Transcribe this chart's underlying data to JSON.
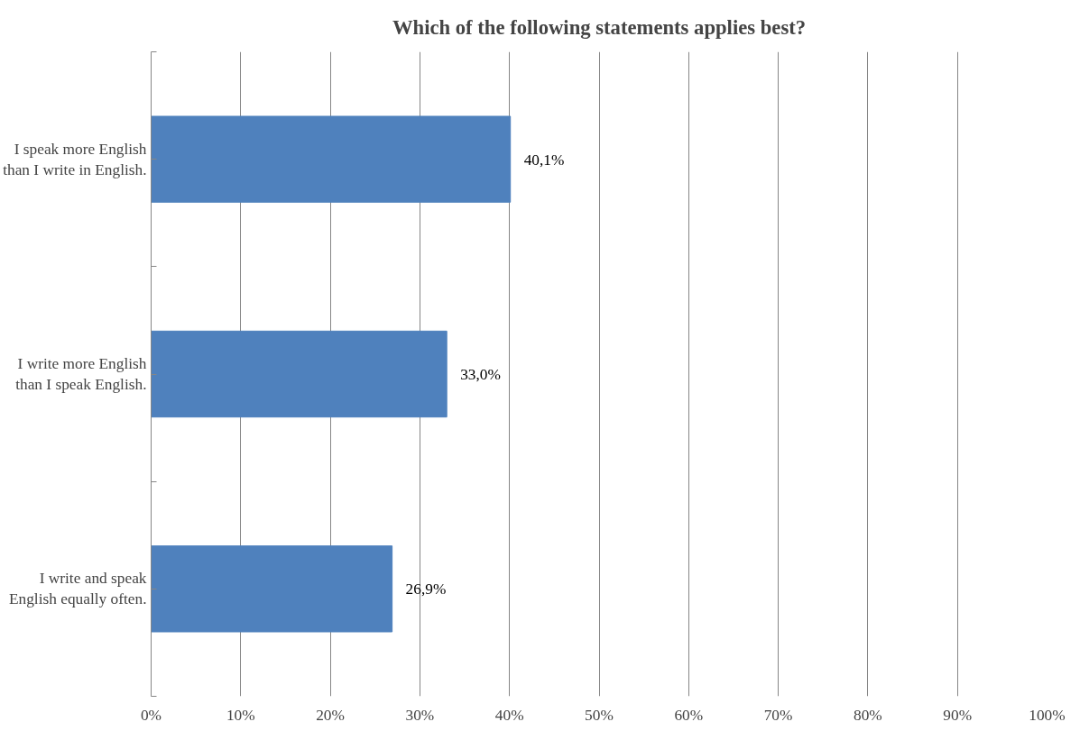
{
  "chart_data": {
    "type": "bar",
    "orientation": "horizontal",
    "title": "Which of the following statements applies best?",
    "categories": [
      "I speak more English than I write in English.",
      "I write more English than I speak English.",
      "I write and speak English equally often."
    ],
    "values": [
      40.1,
      33.0,
      26.9
    ],
    "color": "#4f81bd",
    "value_labels": [
      "40,1%",
      "33,0%",
      "26,9%"
    ],
    "xlim": [
      0,
      100
    ],
    "xticks": [
      {
        "value": 0,
        "label": "0%"
      },
      {
        "value": 10,
        "label": "10%"
      },
      {
        "value": 20,
        "label": "20%"
      },
      {
        "value": 30,
        "label": "30%"
      },
      {
        "value": 40,
        "label": "40%"
      },
      {
        "value": 50,
        "label": "50%"
      },
      {
        "value": 60,
        "label": "60%"
      },
      {
        "value": 70,
        "label": "70%"
      },
      {
        "value": 80,
        "label": "80%"
      },
      {
        "value": 90,
        "label": "90%"
      },
      {
        "value": 100,
        "label": "100%"
      }
    ],
    "grid": "x"
  }
}
